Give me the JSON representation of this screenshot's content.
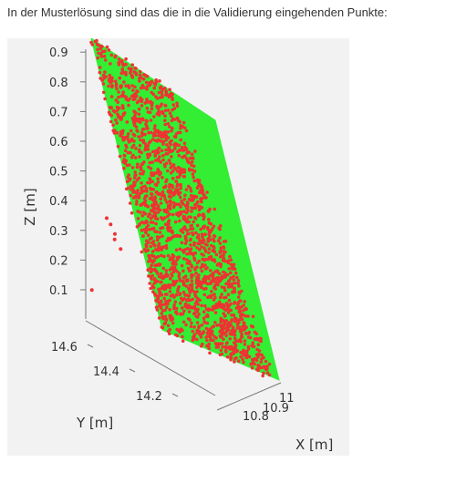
{
  "caption": "In der Musterlösung sind das die in die Validierung eingehenden Punkte:",
  "colors": {
    "plane": "#33ee33",
    "points": "#ee3333",
    "axis": "#777777",
    "background": "#f2f2f2"
  },
  "chart_data": {
    "type": "scatter",
    "projection": "3d",
    "z_axis": {
      "label": "Z [m]",
      "ticks": [
        "0.1",
        "0.2",
        "0.3",
        "0.4",
        "0.5",
        "0.6",
        "0.7",
        "0.8",
        "0.9"
      ],
      "range": [
        0.05,
        0.95
      ]
    },
    "y_axis": {
      "label": "Y [m]",
      "ticks": [
        "14.6",
        "14.4",
        "14.2"
      ],
      "range": [
        14.1,
        14.7
      ]
    },
    "x_axis": {
      "label": "X [m]",
      "ticks": [
        "10.8",
        "10.9",
        "11"
      ],
      "range": [
        10.75,
        11.05
      ]
    },
    "series": [
      {
        "color": "#33ee33",
        "kind": "reference-plane",
        "density": 0.0
      },
      {
        "color": "#ee3333",
        "kind": "validation-points",
        "density": 0.55
      }
    ],
    "outliers": [
      {
        "x": 10.82,
        "y": 14.55,
        "z": 0.4
      },
      {
        "x": 10.83,
        "y": 14.54,
        "z": 0.38
      },
      {
        "x": 10.83,
        "y": 14.52,
        "z": 0.35
      },
      {
        "x": 10.84,
        "y": 14.53,
        "z": 0.33
      },
      {
        "x": 10.85,
        "y": 14.51,
        "z": 0.3
      },
      {
        "x": 10.82,
        "y": 14.62,
        "z": 0.15
      }
    ]
  }
}
